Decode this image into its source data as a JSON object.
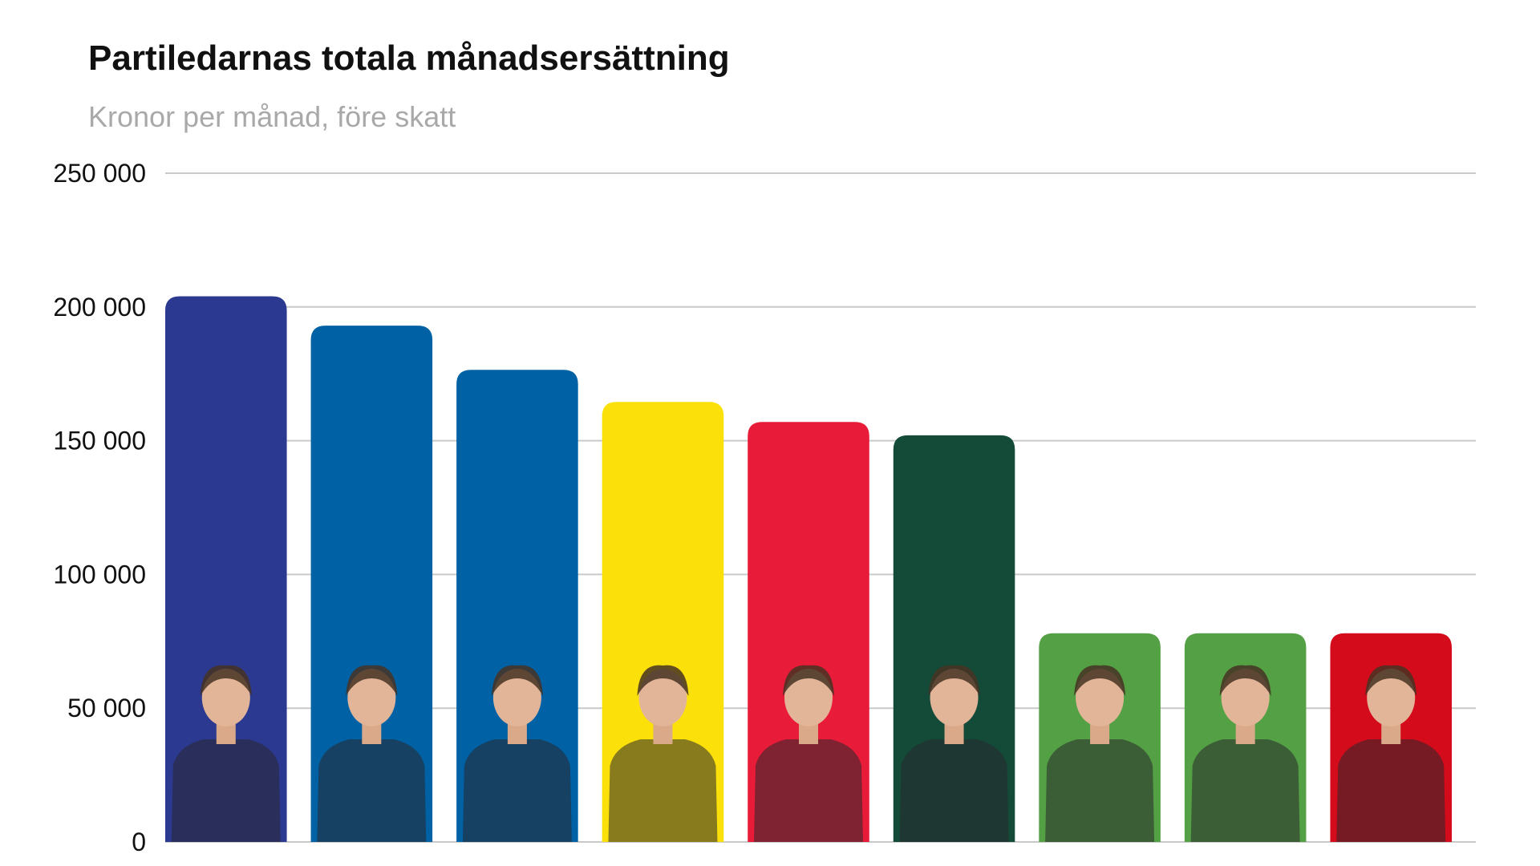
{
  "chart_data": {
    "type": "bar",
    "title": "Partiledarnas totala månadsersättning",
    "subtitle": "Kronor per månad, före skatt",
    "categories": [
      "",
      "",
      "",
      "",
      "",
      "",
      "",
      "",
      ""
    ],
    "values": [
      204000,
      193000,
      176500,
      164500,
      157000,
      152000,
      78000,
      78000,
      78000
    ],
    "colors": [
      "#2b3990",
      "#0061a5",
      "#0061a5",
      "#fce00a",
      "#e81b39",
      "#144a38",
      "#54a044",
      "#54a044",
      "#d40b1a"
    ],
    "ylim": [
      0,
      250000
    ],
    "yticks": [
      0,
      50000,
      100000,
      150000,
      200000,
      250000
    ],
    "ytick_labels": [
      "0",
      "50 000",
      "100 000",
      "150 000",
      "200 000",
      "250 000"
    ],
    "grid": true,
    "xlabel": "",
    "ylabel": ""
  }
}
